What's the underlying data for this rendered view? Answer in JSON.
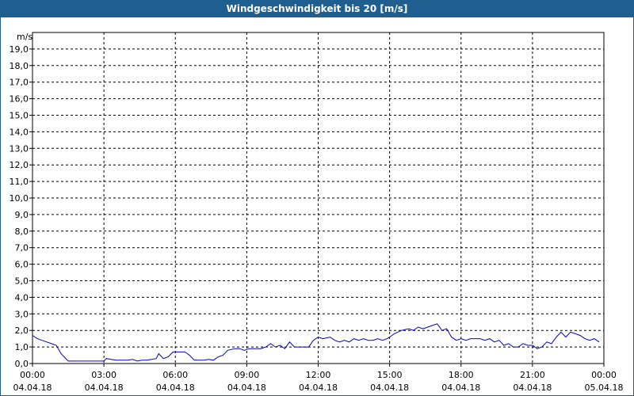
{
  "chart_data": {
    "type": "line",
    "title": "Windgeschwindigkeit bis 20 [m/s]",
    "ylabel": "m/s",
    "xlabel": "",
    "ylim": [
      0,
      20
    ],
    "xlim_hours": [
      0,
      24
    ],
    "y_ticks": [
      "0,0",
      "1,0",
      "2,0",
      "3,0",
      "4,0",
      "5,0",
      "6,0",
      "7,0",
      "8,0",
      "9,0",
      "10,0",
      "11,0",
      "12,0",
      "13,0",
      "14,0",
      "15,0",
      "16,0",
      "17,0",
      "18,0",
      "19,0"
    ],
    "x_ticks": [
      {
        "time": "00:00",
        "date": "04.04.18"
      },
      {
        "time": "03:00",
        "date": "04.04.18"
      },
      {
        "time": "06:00",
        "date": "04.04.18"
      },
      {
        "time": "09:00",
        "date": "04.04.18"
      },
      {
        "time": "12:00",
        "date": "04.04.18"
      },
      {
        "time": "15:00",
        "date": "04.04.18"
      },
      {
        "time": "18:00",
        "date": "04.04.18"
      },
      {
        "time": "21:00",
        "date": "04.04.18"
      },
      {
        "time": "00:00",
        "date": "05.04.18"
      }
    ],
    "grid": true,
    "line_color": "#0000cc",
    "series": [
      {
        "x": [
          0,
          0.2,
          0.4,
          0.6,
          0.8,
          1.0,
          1.2,
          1.5,
          1.8,
          2.0,
          2.5,
          3.0,
          3.1,
          3.3,
          3.5,
          3.8,
          4.0,
          4.2,
          4.4,
          4.6,
          4.8,
          5.0,
          5.2,
          5.3,
          5.5,
          5.7,
          5.9,
          6.0,
          6.2,
          6.4,
          6.6,
          6.8,
          7.0,
          7.2,
          7.4,
          7.6,
          7.8,
          8.0,
          8.2,
          8.5,
          8.7,
          8.9,
          9.1,
          9.3,
          9.6,
          9.8,
          10.0,
          10.2,
          10.4,
          10.6,
          10.8,
          11.0,
          11.2,
          11.4,
          11.6,
          11.8,
          12.0,
          12.2,
          12.5,
          12.7,
          12.9,
          13.1,
          13.3,
          13.5,
          13.7,
          13.9,
          14.1,
          14.3,
          14.5,
          14.7,
          14.9,
          15.0,
          15.2,
          15.5,
          15.8,
          16.0,
          16.2,
          16.4,
          16.6,
          16.8,
          17.0,
          17.2,
          17.4,
          17.6,
          17.8,
          18.0,
          18.2,
          18.4,
          18.6,
          18.8,
          19.0,
          19.2,
          19.4,
          19.6,
          19.8,
          20.0,
          20.2,
          20.4,
          20.6,
          20.8,
          21.0,
          21.2,
          21.4,
          21.6,
          21.8,
          22.0,
          22.2,
          22.4,
          22.6,
          22.8,
          23.0,
          23.2,
          23.4,
          23.6,
          23.8
        ],
        "y": [
          1.7,
          1.5,
          1.4,
          1.3,
          1.2,
          1.1,
          0.6,
          0.15,
          0.15,
          0.15,
          0.15,
          0.15,
          0.3,
          0.25,
          0.2,
          0.2,
          0.2,
          0.25,
          0.15,
          0.2,
          0.2,
          0.25,
          0.3,
          0.6,
          0.3,
          0.4,
          0.7,
          0.7,
          0.7,
          0.7,
          0.5,
          0.2,
          0.2,
          0.2,
          0.25,
          0.2,
          0.4,
          0.5,
          0.8,
          0.9,
          0.9,
          0.8,
          0.9,
          0.9,
          0.9,
          1.0,
          1.2,
          1.0,
          1.1,
          0.9,
          1.3,
          1.0,
          1.0,
          1.0,
          1.0,
          1.4,
          1.6,
          1.5,
          1.6,
          1.4,
          1.3,
          1.4,
          1.3,
          1.5,
          1.4,
          1.5,
          1.4,
          1.4,
          1.5,
          1.4,
          1.5,
          1.6,
          1.8,
          2.0,
          2.1,
          2.0,
          2.2,
          2.1,
          2.2,
          2.3,
          2.4,
          2.0,
          2.1,
          1.6,
          1.4,
          1.5,
          1.4,
          1.5,
          1.5,
          1.5,
          1.4,
          1.5,
          1.3,
          1.4,
          1.1,
          1.2,
          1.0,
          1.0,
          1.2,
          1.1,
          1.1,
          0.9,
          1.0,
          1.3,
          1.2,
          1.6,
          1.9,
          1.6,
          1.9,
          1.8,
          1.7,
          1.5,
          1.4,
          1.5,
          1.3
        ]
      }
    ]
  }
}
